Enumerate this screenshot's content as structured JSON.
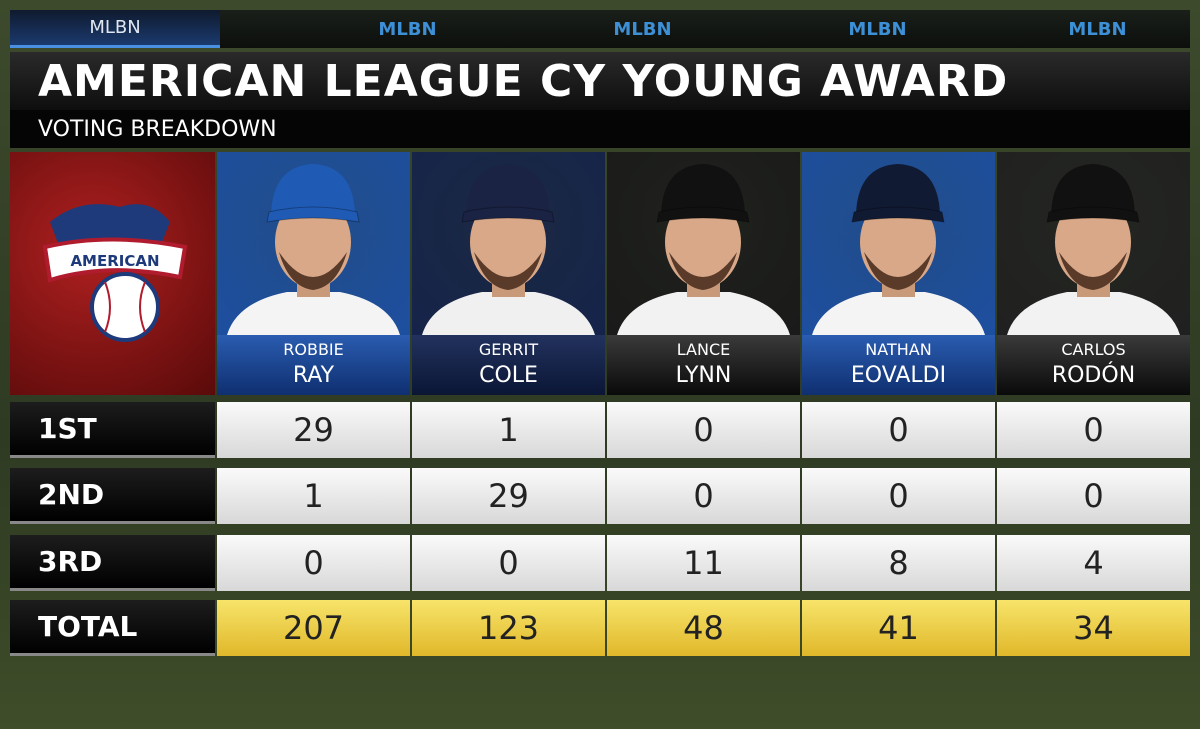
{
  "header": {
    "tabs": [
      "MLBN",
      "MLBN",
      "MLBN",
      "MLBN",
      "MLBN"
    ],
    "title": "AMERICAN LEAGUE CY YOUNG AWARD",
    "subtitle": "VOTING BREAKDOWN"
  },
  "logo": {
    "text": "AMERICAN"
  },
  "table": {
    "columns": [
      {
        "first": "ROBBIE",
        "last": "RAY"
      },
      {
        "first": "GERRIT",
        "last": "COLE"
      },
      {
        "first": "LANCE",
        "last": "LYNN"
      },
      {
        "first": "NATHAN",
        "last": "EOVALDI"
      },
      {
        "first": "CARLOS",
        "last": "RODÓN"
      }
    ],
    "rows": [
      {
        "label": "1ST",
        "values": [
          29,
          1,
          0,
          0,
          0
        ]
      },
      {
        "label": "2ND",
        "values": [
          1,
          29,
          0,
          0,
          0
        ]
      },
      {
        "label": "3RD",
        "values": [
          0,
          0,
          11,
          8,
          4
        ]
      },
      {
        "label": "TOTAL",
        "values": [
          207,
          123,
          48,
          41,
          34
        ]
      }
    ]
  }
}
